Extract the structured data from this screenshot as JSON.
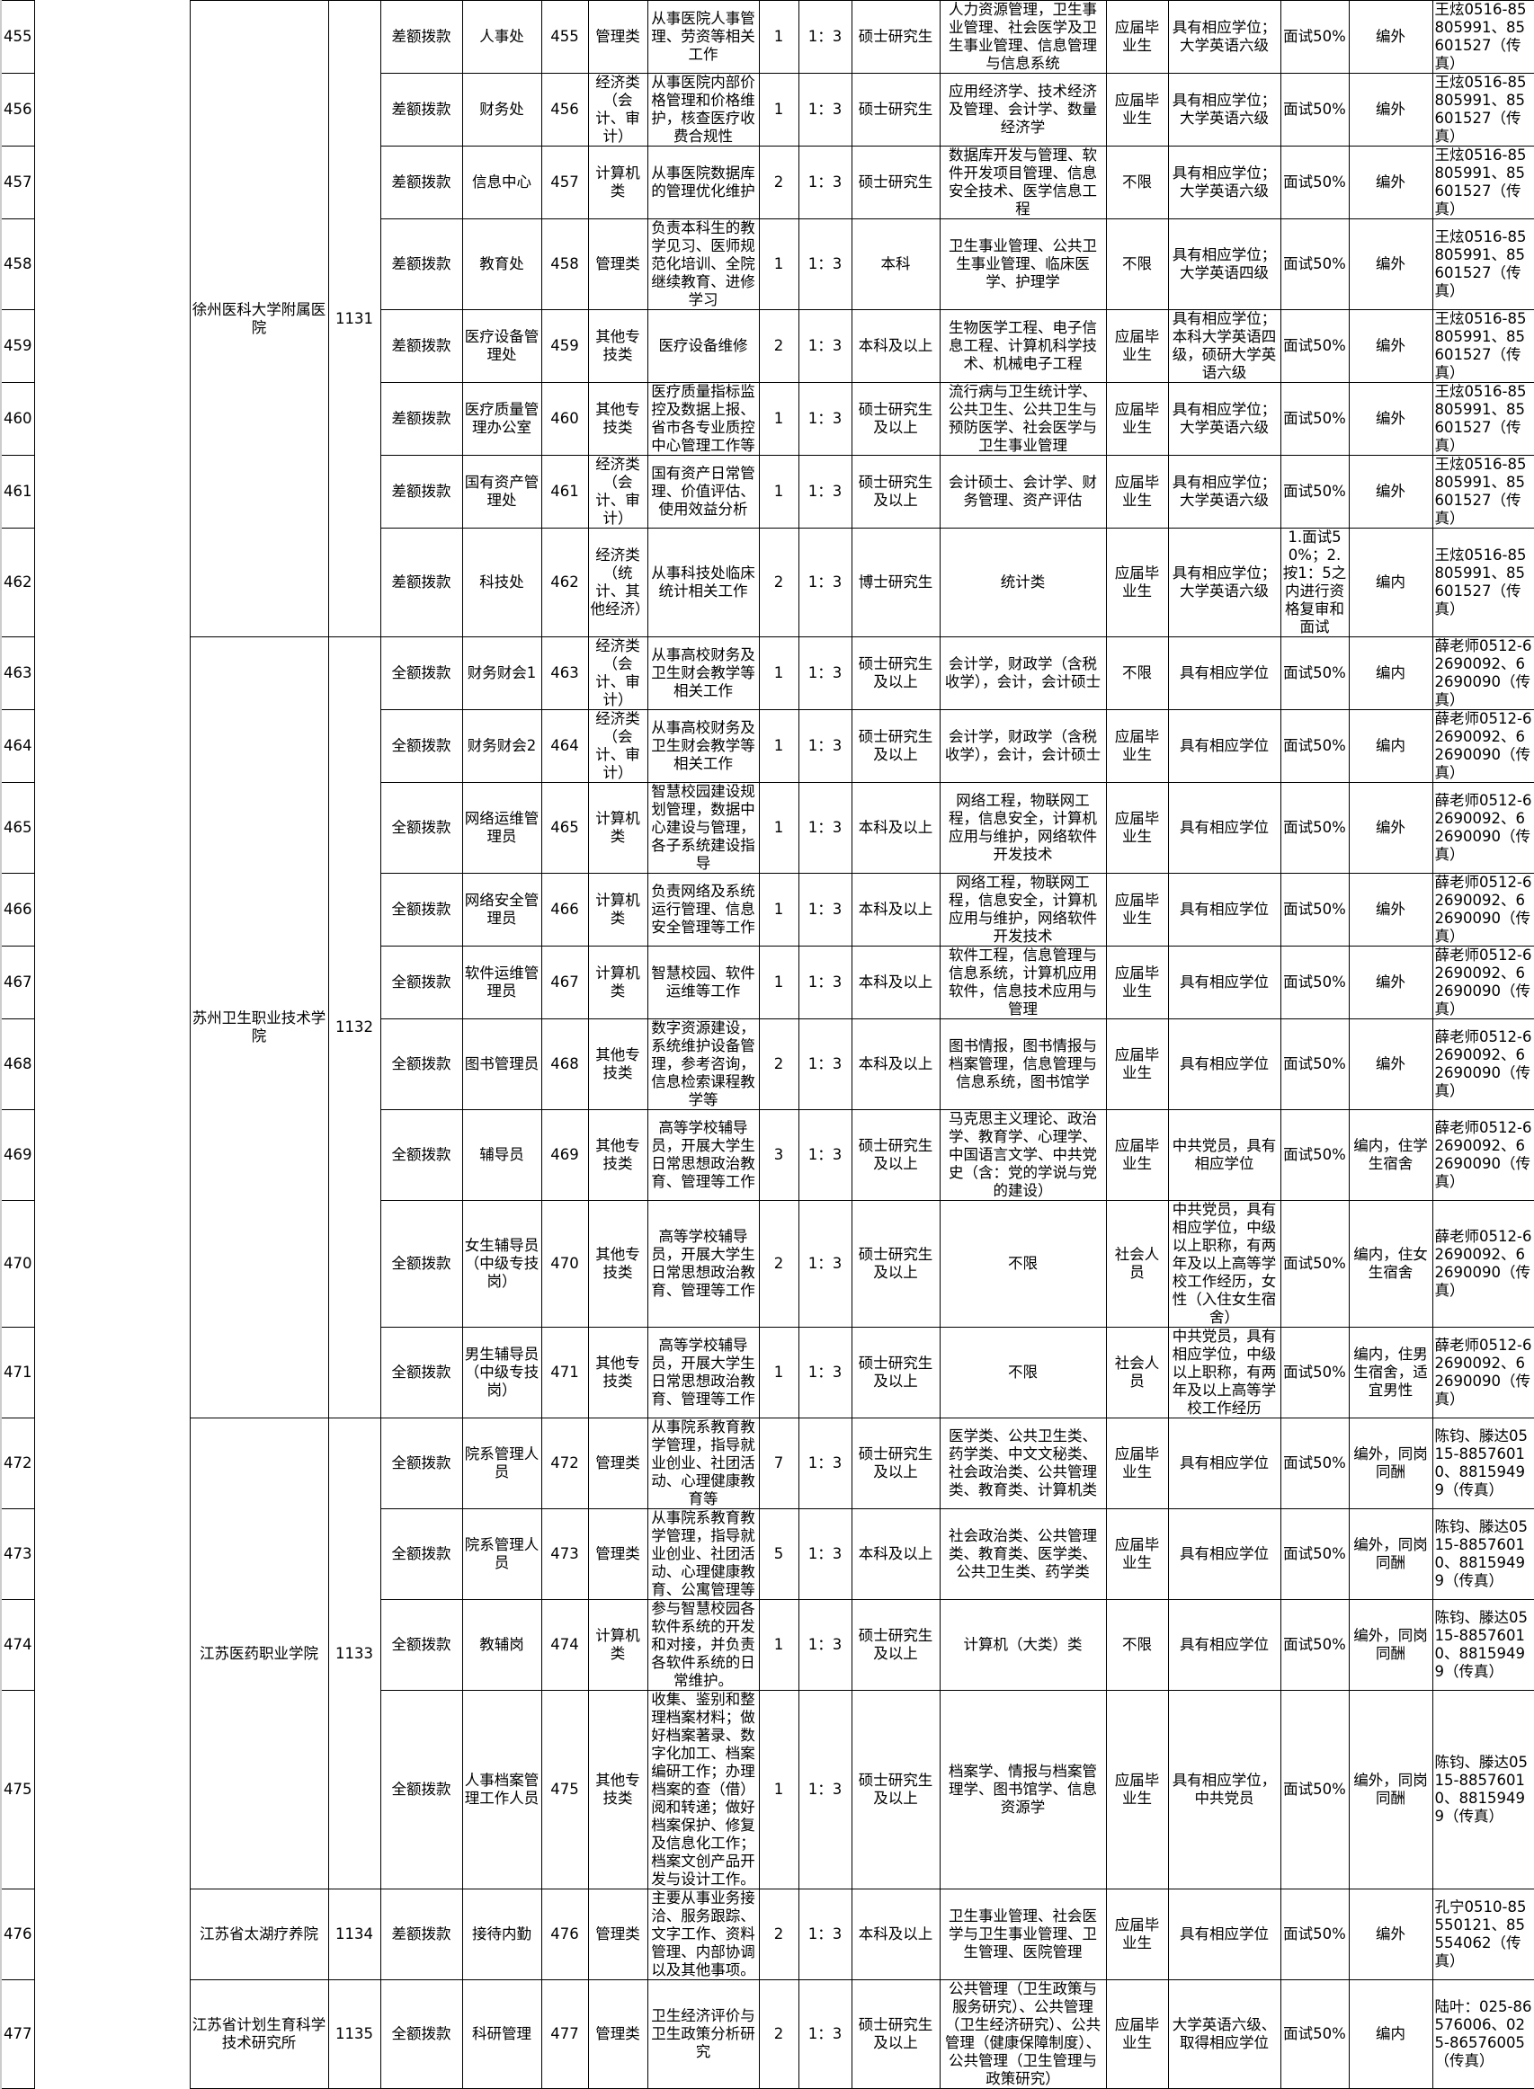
{
  "units": [
    {
      "name": "徐州医科大学附属医院",
      "code": "1131"
    },
    {
      "name": "苏州卫生职业技术学院",
      "code": "1132"
    },
    {
      "name": "江苏医药职业学院",
      "code": "1133"
    },
    {
      "name": "江苏省太湖疗养院",
      "code": "1134"
    },
    {
      "name": "江苏省计划生育科学技术研究所",
      "code": "1135"
    }
  ],
  "rows": [
    {
      "no": "455",
      "funding": "差额拨款",
      "dept": "人事处",
      "post_code": "455",
      "category": "管理类",
      "desc": "从事医院人事管理、劳资等相关工作",
      "count": "1",
      "ratio": "1：3",
      "education": "硕士研究生",
      "major": "人力资源管理，卫生事业管理、社会医学及卫生事业管理、信息管理与信息系统",
      "source": "应届毕业生",
      "qualification": "具有相应学位；大学英语六级",
      "exam": "面试50%",
      "staffing": "编外",
      "contact": "王炫0516-85805991、85601527（传真）"
    },
    {
      "no": "456",
      "funding": "差额拨款",
      "dept": "财务处",
      "post_code": "456",
      "category": "经济类（会计、审计）",
      "desc": "从事医院内部价格管理和价格维护，核查医疗收费合规性",
      "count": "1",
      "ratio": "1：3",
      "education": "硕士研究生",
      "major": "应用经济学、技术经济及管理、会计学、数量经济学",
      "source": "应届毕业生",
      "qualification": "具有相应学位；大学英语六级",
      "exam": "面试50%",
      "staffing": "编外",
      "contact": "王炫0516-85805991、85601527（传真）"
    },
    {
      "no": "457",
      "funding": "差额拨款",
      "dept": "信息中心",
      "post_code": "457",
      "category": "计算机类",
      "desc": "从事医院数据库的管理优化维护",
      "count": "2",
      "ratio": "1：3",
      "education": "硕士研究生",
      "major": "数据库开发与管理、软件开发项目管理、信息安全技术、医学信息工程",
      "source": "不限",
      "qualification": "具有相应学位；大学英语六级",
      "exam": "面试50%",
      "staffing": "编外",
      "contact": "王炫0516-85805991、85601527（传真）"
    },
    {
      "no": "458",
      "funding": "差额拨款",
      "dept": "教育处",
      "post_code": "458",
      "category": "管理类",
      "desc": "负责本科生的教学见习、医师规范化培训、全院继续教育、进修学习",
      "count": "1",
      "ratio": "1：3",
      "education": "本科",
      "major": "卫生事业管理、公共卫生事业管理、临床医学、护理学",
      "source": "不限",
      "qualification": "具有相应学位；大学英语四级",
      "exam": "面试50%",
      "staffing": "编外",
      "contact": "王炫0516-85805991、85601527（传真）"
    },
    {
      "no": "459",
      "funding": "差额拨款",
      "dept": "医疗设备管理处",
      "post_code": "459",
      "category": "其他专技类",
      "desc": "医疗设备维修",
      "count": "2",
      "ratio": "1：3",
      "education": "本科及以上",
      "major": "生物医学工程、电子信息工程、计算机科学技术、机械电子工程",
      "source": "应届毕业生",
      "qualification": "具有相应学位；本科大学英语四级，硕研大学英语六级",
      "exam": "面试50%",
      "staffing": "编外",
      "contact": "王炫0516-85805991、85601527（传真）"
    },
    {
      "no": "460",
      "funding": "差额拨款",
      "dept": "医疗质量管理办公室",
      "post_code": "460",
      "category": "其他专技类",
      "desc": "医疗质量指标监控及数据上报、省市各专业质控中心管理工作等",
      "count": "1",
      "ratio": "1：3",
      "education": "硕士研究生及以上",
      "major": "流行病与卫生统计学、公共卫生、公共卫生与预防医学、社会医学与卫生事业管理",
      "source": "应届毕业生",
      "qualification": "具有相应学位；大学英语六级",
      "exam": "面试50%",
      "staffing": "编外",
      "contact": "王炫0516-85805991、85601527（传真）"
    },
    {
      "no": "461",
      "funding": "差额拨款",
      "dept": "国有资产管理处",
      "post_code": "461",
      "category": "经济类（会计、审计）",
      "desc": "国有资产日常管理、价值评估、使用效益分析",
      "count": "1",
      "ratio": "1：3",
      "education": "硕士研究生及以上",
      "major": "会计硕士、会计学、财务管理、资产评估",
      "source": "应届毕业生",
      "qualification": "具有相应学位；大学英语六级",
      "exam": "面试50%",
      "staffing": "编外",
      "contact": "王炫0516-85805991、85601527（传真）"
    },
    {
      "no": "462",
      "funding": "差额拨款",
      "dept": "科技处",
      "post_code": "462",
      "category": "经济类（统计、其他经济）",
      "desc": "从事科技处临床统计相关工作",
      "count": "2",
      "ratio": "1：3",
      "education": "博士研究生",
      "major": "统计类",
      "source": "应届毕业生",
      "qualification": "具有相应学位；大学英语六级",
      "exam": "1.面试50%；2.按1：5之内进行资格复审和面试",
      "staffing": "编内",
      "contact": "王炫0516-85805991、85601527（传真）"
    },
    {
      "no": "463",
      "funding": "全额拨款",
      "dept": "财务财会1",
      "post_code": "463",
      "category": "经济类（会计、审计）",
      "desc": "从事高校财务及卫生财会教学等相关工作",
      "count": "1",
      "ratio": "1：3",
      "education": "硕士研究生及以上",
      "major": "会计学，财政学（含税收学），会计，会计硕士",
      "source": "不限",
      "qualification": "具有相应学位",
      "exam": "面试50%",
      "staffing": "编内",
      "contact": "薛老师0512-62690092、62690090（传真）"
    },
    {
      "no": "464",
      "funding": "全额拨款",
      "dept": "财务财会2",
      "post_code": "464",
      "category": "经济类（会计、审计）",
      "desc": "从事高校财务及卫生财会教学等相关工作",
      "count": "1",
      "ratio": "1：3",
      "education": "硕士研究生及以上",
      "major": "会计学，财政学（含税收学），会计，会计硕士",
      "source": "应届毕业生",
      "qualification": "具有相应学位",
      "exam": "面试50%",
      "staffing": "编内",
      "contact": "薛老师0512-62690092、62690090（传真）"
    },
    {
      "no": "465",
      "funding": "全额拨款",
      "dept": "网络运维管理员",
      "post_code": "465",
      "category": "计算机类",
      "desc": "智慧校园建设规划管理，数据中心建设与管理，各子系统建设指导",
      "count": "1",
      "ratio": "1：3",
      "education": "本科及以上",
      "major": "网络工程，物联网工程，信息安全，计算机应用与维护，网络软件开发技术",
      "source": "应届毕业生",
      "qualification": "具有相应学位",
      "exam": "面试50%",
      "staffing": "编外",
      "contact": "薛老师0512-62690092、62690090（传真）"
    },
    {
      "no": "466",
      "funding": "全额拨款",
      "dept": "网络安全管理员",
      "post_code": "466",
      "category": "计算机类",
      "desc": "负责网络及系统运行管理、信息安全管理等工作",
      "count": "1",
      "ratio": "1：3",
      "education": "本科及以上",
      "major": "网络工程，物联网工程，信息安全，计算机应用与维护，网络软件开发技术",
      "source": "应届毕业生",
      "qualification": "具有相应学位",
      "exam": "面试50%",
      "staffing": "编外",
      "contact": "薛老师0512-62690092、62690090（传真）"
    },
    {
      "no": "467",
      "funding": "全额拨款",
      "dept": "软件运维管理员",
      "post_code": "467",
      "category": "计算机类",
      "desc": "智慧校园、软件运维等工作",
      "count": "1",
      "ratio": "1：3",
      "education": "本科及以上",
      "major": "软件工程，信息管理与信息系统，计算机应用软件，信息技术应用与管理",
      "source": "应届毕业生",
      "qualification": "具有相应学位",
      "exam": "面试50%",
      "staffing": "编外",
      "contact": "薛老师0512-62690092、62690090（传真）"
    },
    {
      "no": "468",
      "funding": "全额拨款",
      "dept": "图书管理员",
      "post_code": "468",
      "category": "其他专技类",
      "desc": "数字资源建设，系统维护设备管理，参考咨询，信息检索课程教学等",
      "count": "2",
      "ratio": "1：3",
      "education": "本科及以上",
      "major": "图书情报，图书情报与档案管理，信息管理与信息系统，图书馆学",
      "source": "应届毕业生",
      "qualification": "具有相应学位",
      "exam": "面试50%",
      "staffing": "编外",
      "contact": "薛老师0512-62690092、62690090（传真）"
    },
    {
      "no": "469",
      "funding": "全额拨款",
      "dept": "辅导员",
      "post_code": "469",
      "category": "其他专技类",
      "desc": "高等学校辅导员，开展大学生日常思想政治教育、管理等工作",
      "count": "3",
      "ratio": "1：3",
      "education": "硕士研究生及以上",
      "major": "马克思主义理论、政治学、教育学、心理学、中国语言文学、中共党史（含：党的学说与党的建设）",
      "source": "应届毕业生",
      "qualification": "中共党员，具有相应学位",
      "exam": "面试50%",
      "staffing": "编内，住学生宿舍",
      "contact": "薛老师0512-62690092、62690090（传真）"
    },
    {
      "no": "470",
      "funding": "全额拨款",
      "dept": "女生辅导员（中级专技岗）",
      "post_code": "470",
      "category": "其他专技类",
      "desc": "高等学校辅导员，开展大学生日常思想政治教育、管理等工作",
      "count": "2",
      "ratio": "1：3",
      "education": "硕士研究生及以上",
      "major": "不限",
      "source": "社会人员",
      "qualification": "中共党员，具有相应学位，中级以上职称，有两年及以上高等学校工作经历，女性（入住女生宿舍）",
      "exam": "面试50%",
      "staffing": "编内，住女生宿舍",
      "contact": "薛老师0512-62690092、62690090（传真）"
    },
    {
      "no": "471",
      "funding": "全额拨款",
      "dept": "男生辅导员（中级专技岗）",
      "post_code": "471",
      "category": "其他专技类",
      "desc": "高等学校辅导员，开展大学生日常思想政治教育、管理等工作",
      "count": "1",
      "ratio": "1：3",
      "education": "硕士研究生及以上",
      "major": "不限",
      "source": "社会人员",
      "qualification": "中共党员，具有相应学位，中级以上职称，有两年及以上高等学校工作经历",
      "exam": "面试50%",
      "staffing": "编内，住男生宿舍，适宜男性",
      "contact": "薛老师0512-62690092、62690090（传真）"
    },
    {
      "no": "472",
      "funding": "全额拨款",
      "dept": "院系管理人员",
      "post_code": "472",
      "category": "管理类",
      "desc": "从事院系教育教学管理，指导就业创业、社团活动、心理健康教育等",
      "count": "7",
      "ratio": "1：3",
      "education": "硕士研究生及以上",
      "major": "医学类、公共卫生类、药学类、中文文秘类、社会政治类、公共管理类、教育类、计算机类",
      "source": "应届毕业生",
      "qualification": "具有相应学位",
      "exam": "面试50%",
      "staffing": "编外，同岗同酬",
      "contact": "陈钧、滕达0515-88576010、88159499（传真）"
    },
    {
      "no": "473",
      "funding": "全额拨款",
      "dept": "院系管理人员",
      "post_code": "473",
      "category": "管理类",
      "desc": "从事院系教育教学管理，指导就业创业、社团活动、心理健康教育、公寓管理等",
      "count": "5",
      "ratio": "1：3",
      "education": "本科及以上",
      "major": "社会政治类、公共管理类、教育类、医学类、公共卫生类、药学类",
      "source": "应届毕业生",
      "qualification": "具有相应学位",
      "exam": "面试50%",
      "staffing": "编外，同岗同酬",
      "contact": "陈钧、滕达0515-88576010、88159499（传真）"
    },
    {
      "no": "474",
      "funding": "全额拨款",
      "dept": "教辅岗",
      "post_code": "474",
      "category": "计算机类",
      "desc": "参与智慧校园各软件系统的开发和对接，并负责各软件系统的日常维护。",
      "count": "1",
      "ratio": "1：3",
      "education": "硕士研究生及以上",
      "major": "计算机（大类）类",
      "source": "不限",
      "qualification": "具有相应学位",
      "exam": "面试50%",
      "staffing": "编外，同岗同酬",
      "contact": "陈钧、滕达0515-88576010、88159499（传真）"
    },
    {
      "no": "475",
      "funding": "全额拨款",
      "dept": "人事档案管理工作人员",
      "post_code": "475",
      "category": "其他专技类",
      "desc": "收集、鉴别和整理档案材料；做好档案著录、数字化加工、档案编研工作；办理档案的查（借）阅和转递；做好档案保护、修复及信息化工作；档案文创产品开发与设计工作。",
      "count": "1",
      "ratio": "1：3",
      "education": "硕士研究生及以上",
      "major": "档案学、情报与档案管理学、图书馆学、信息资源学",
      "source": "应届毕业生",
      "qualification": "具有相应学位，中共党员",
      "exam": "面试50%",
      "staffing": "编外，同岗同酬",
      "contact": "陈钧、滕达0515-88576010、88159499（传真）"
    },
    {
      "no": "476",
      "funding": "差额拨款",
      "dept": "接待内勤",
      "post_code": "476",
      "category": "管理类",
      "desc": "主要从事业务接洽、服务跟踪、文字工作、资料管理、内部协调以及其他事项。",
      "count": "2",
      "ratio": "1：3",
      "education": "本科及以上",
      "major": "卫生事业管理、社会医学与卫生事业管理、卫生管理、医院管理",
      "source": "应届毕业生",
      "qualification": "具有相应学位",
      "exam": "面试50%",
      "staffing": "编外",
      "contact": "孔宁0510-85550121、85554062（传真）"
    },
    {
      "no": "477",
      "funding": "全额拨款",
      "dept": "科研管理",
      "post_code": "477",
      "category": "管理类",
      "desc": "卫生经济评价与卫生政策分析研究",
      "count": "2",
      "ratio": "1：3",
      "education": "硕士研究生及以上",
      "major": "公共管理（卫生政策与服务研究）、公共管理（卫生经济研究）、公共管理（健康保障制度）、公共管理（卫生管理与政策研究）",
      "source": "应届毕业生",
      "qualification": "大学英语六级、取得相应学位",
      "exam": "面试50%",
      "staffing": "编内",
      "contact": "陆叶：025-86576006、025-86576005（传真）"
    }
  ]
}
